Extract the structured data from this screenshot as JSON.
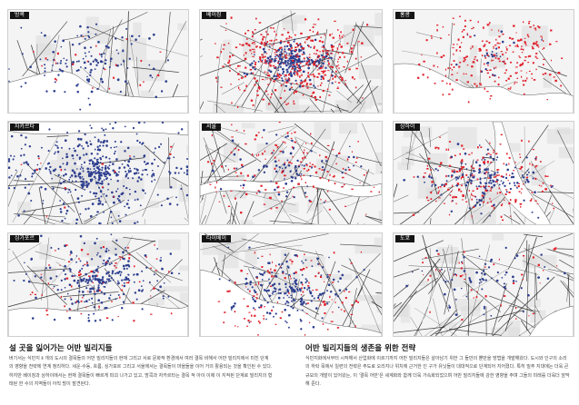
{
  "panels": [
    {
      "label": "방콕"
    },
    {
      "label": "베이징"
    },
    {
      "label": "홍콩"
    },
    {
      "label": "자카르타"
    },
    {
      "label": "서울"
    },
    {
      "label": "상하이"
    },
    {
      "label": "싱가포르"
    },
    {
      "label": "타이베이"
    },
    {
      "label": "도쿄"
    }
  ],
  "colors": {
    "blue_dots": "#2e3f8f",
    "red_dots": "#e0202a",
    "roads": "#1a1a1a",
    "water": "#ffffff",
    "land": "#dddddd"
  },
  "left_section": {
    "heading": "설 곳을 잃어가는 어반 빌리지들",
    "body": "버기서는 식민지 ⅱ 개의 도시의 결목들의 어반 빌리지들의 현재 그리고 서로 문화적 환경에서 여러 결목 비해서 어반 빌리지에서 미친 단계의 영향을 전략에 연계 정리하다. 세운·수동, 흐름, 싱가포르 그리고 서울에서는 결목들이 마을들을 이어 거의 활용되는 것을 확인된 수 있다. 하지만 베이징과 상하이에서는 현재 결목들이 빠르게 파괴 나가고 있고, 방콕과 자카르타는 결목 적 아이 이제 이 지적된 단계로 빌리지의 형태된 한 수의 지역들이 아직 많이 발견된다."
  },
  "right_section": {
    "heading": "어반 빌리지들의 생존을 위한 전략",
    "body": "식민지화에서부터 시작해서 산업화에 이르기까지 어반 빌리지들은 살아남기 위한 그 들만의 뿐만을 방법을 개발해왔다. 도시와 인구의 소리의 하락 목에서 일련의 전략은 주도로 오리지나 위치에 근거한 인 구가 유닛들이 대대적으로 단계되어 지어졌다. 특히 밀주 지대에는 더욱 큰 규모의 개발이 있어왔는, 이 '결목 어반'은 세계화와 함께 더욱 가속화되었으며 어반 빌리지들에 강한 영향을 주며 그들의 미래를 더욱더 암막해 준다."
  }
}
